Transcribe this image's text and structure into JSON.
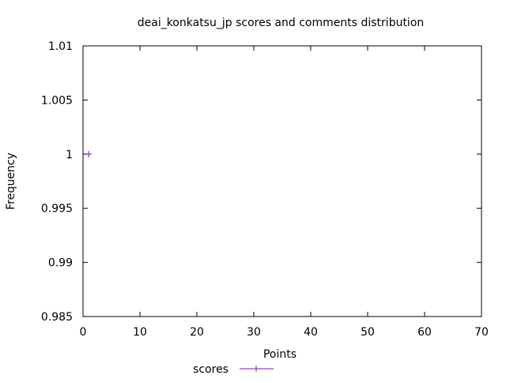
{
  "chart_data": {
    "type": "scatter",
    "title": "deai_konkatsu_jp scores and comments distribution",
    "xlabel": "Points",
    "ylabel": "Frequency",
    "xlim": [
      0,
      70
    ],
    "ylim": [
      0.985,
      1.01
    ],
    "xticks": [
      0,
      10,
      20,
      30,
      40,
      50,
      60,
      70
    ],
    "yticks": [
      0.985,
      0.99,
      0.995,
      1,
      1.005,
      1.01
    ],
    "xtick_labels": [
      "0",
      "10",
      "20",
      "30",
      "40",
      "50",
      "60",
      "70"
    ],
    "ytick_labels": [
      "0.985",
      "0.99",
      "0.995",
      "1",
      "1.005",
      "1.01"
    ],
    "legend_position": "bottom-center",
    "grid": false,
    "series": [
      {
        "name": "scores",
        "color": "#9400d3",
        "marker": "plus",
        "x": [
          1
        ],
        "y": [
          1
        ]
      }
    ]
  }
}
